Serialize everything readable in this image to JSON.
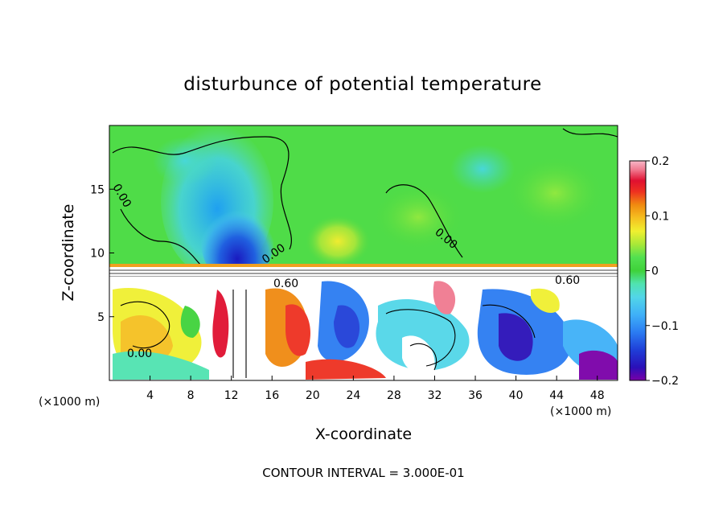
{
  "chart_data": {
    "type": "heatmap",
    "title": "disturbunce of potential temperature",
    "xlabel": "X-coordinate",
    "ylabel": "Z-coordinate",
    "x_unit": "(×1000 m)",
    "z_unit": "(×1000 m)",
    "xlim": [
      0,
      50
    ],
    "ylim": [
      0,
      20
    ],
    "x_ticks": [
      "4",
      "8",
      "12",
      "16",
      "20",
      "24",
      "28",
      "32",
      "36",
      "40",
      "44",
      "48"
    ],
    "y_ticks": [
      "5",
      "10",
      "15"
    ],
    "colorbar": {
      "range": [
        -0.2,
        0.2
      ],
      "tick_labels": [
        "0.2",
        "0.1",
        "0",
        "−0.1",
        "−0.2"
      ],
      "colors": [
        "#7a00a8",
        "#2a10b8",
        "#1f3fd8",
        "#2b7cf2",
        "#3fb1f8",
        "#52d6e8",
        "#50e3b0",
        "#3fd23a",
        "#52e050",
        "#a8e838",
        "#f0f030",
        "#f5c020",
        "#f08a10",
        "#ee3020",
        "#e01030",
        "#f07a90",
        "#f8b8c8"
      ]
    },
    "contour_labels": [
      "0.00",
      "0.00",
      "0.00",
      "0.00",
      "0.60",
      "0.60"
    ],
    "footer": "CONTOUR INTERVAL = 3.000E-01"
  }
}
